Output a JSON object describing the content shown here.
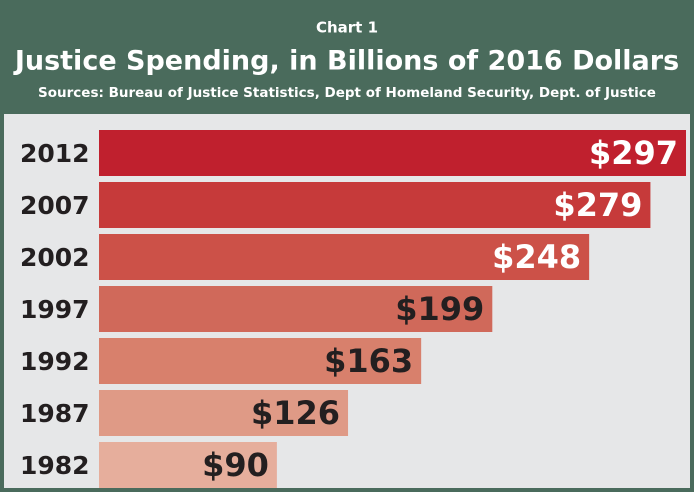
{
  "chart_data": {
    "type": "bar",
    "orientation": "horizontal",
    "label": "Chart 1",
    "title": "Justice Spending, in Billions of 2016 Dollars",
    "subtitle": "Sources: Bureau of Justice Statistics, Dept of Homeland Security, Dept. of Justice",
    "categories": [
      "2012",
      "2007",
      "2002",
      "1997",
      "1992",
      "1987",
      "1982"
    ],
    "values": [
      297,
      279,
      248,
      199,
      163,
      126,
      90
    ],
    "value_labels": [
      "$297",
      "$279",
      "$248",
      "$199",
      "$163",
      "$126",
      "$90"
    ],
    "colors": [
      "#c0202e",
      "#c63a3a",
      "#cc5148",
      "#d0695a",
      "#d8806c",
      "#df9a86",
      "#e6ae9c"
    ],
    "value_label_colors": [
      "#ffffff",
      "#ffffff",
      "#ffffff",
      "#231f20",
      "#231f20",
      "#231f20",
      "#231f20"
    ]
  }
}
